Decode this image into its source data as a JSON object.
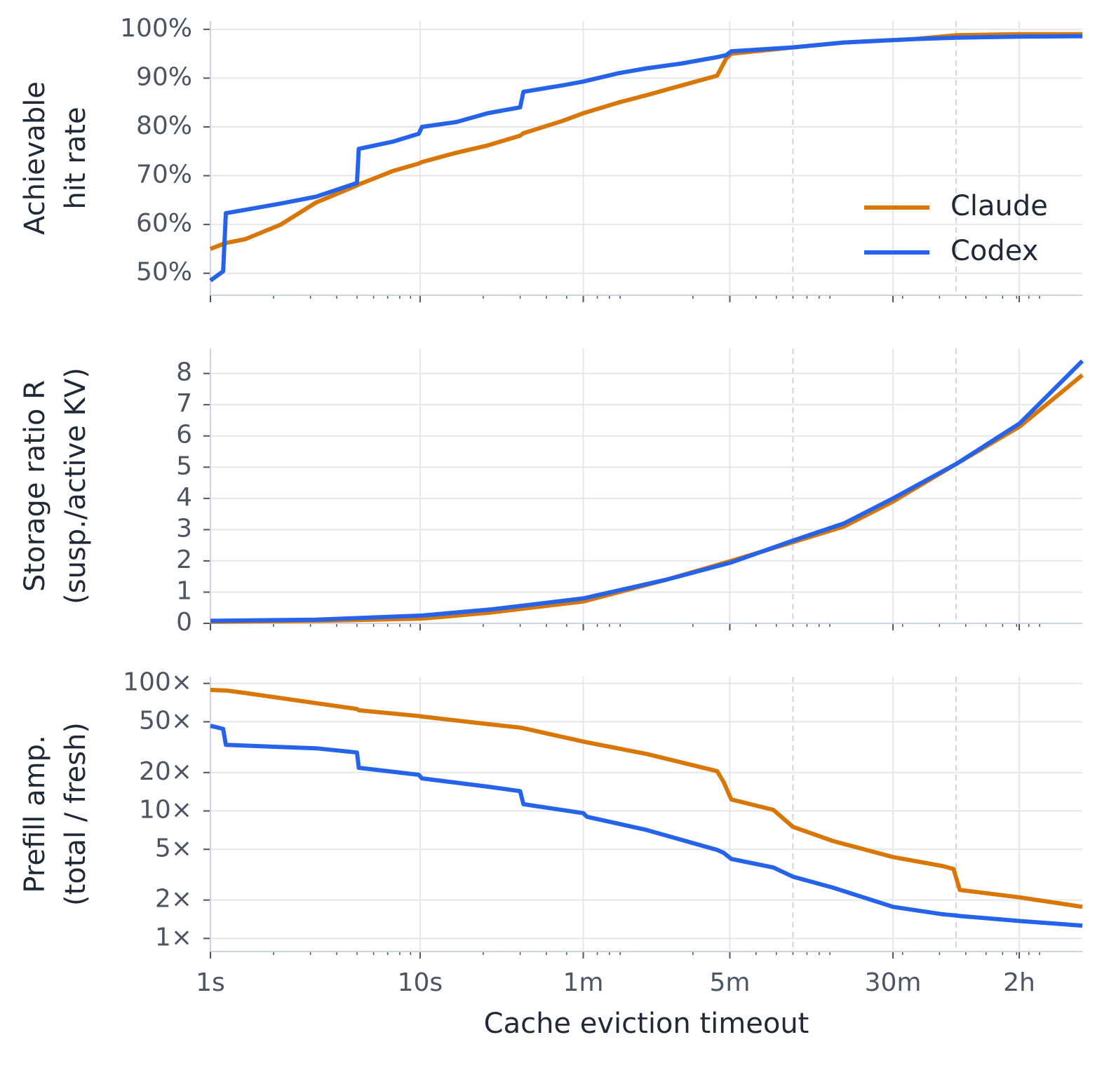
{
  "chart_data": [
    {
      "type": "line",
      "ylabel": [
        "Achievable",
        "hit rate"
      ],
      "xlog": true,
      "ylog": false,
      "grid": true,
      "legend": "lower right",
      "xlim": [
        1,
        14400
      ],
      "ylim": [
        45.5,
        101.7
      ],
      "yticks": [
        {
          "value": 50,
          "label": "50%"
        },
        {
          "value": 60,
          "label": "60%"
        },
        {
          "value": 70,
          "label": "70%"
        },
        {
          "value": 80,
          "label": "80%"
        },
        {
          "value": 90,
          "label": "90%"
        },
        {
          "value": 100,
          "label": "100%"
        }
      ],
      "vlines": [
        600,
        3600
      ],
      "x": [
        1,
        1.15,
        1.185,
        1.47,
        2.17,
        3.19,
        5.0,
        5.1,
        7.46,
        9.85,
        10.2,
        14.9,
        21,
        30,
        31.1,
        47.6,
        60,
        88.3,
        120,
        177,
        261,
        288,
        305,
        600,
        1050,
        2270,
        3600,
        7230,
        14400
      ],
      "series": [
        {
          "name": "Claude",
          "color": "#d97706",
          "values": [
            55,
            56,
            56.2,
            57,
            60,
            64.5,
            68,
            68.2,
            71,
            72.5,
            72.8,
            74.7,
            76.2,
            78.2,
            78.7,
            81.2,
            82.8,
            85,
            86.5,
            88.5,
            90.5,
            94,
            95,
            96.3,
            97.3,
            98,
            98.8,
            99,
            99
          ]
        },
        {
          "name": "Codex",
          "color": "#2563eb",
          "values": [
            48.5,
            50.4,
            62.3,
            63,
            64.3,
            65.7,
            68.5,
            75.5,
            77,
            78.6,
            80,
            81,
            82.8,
            84,
            87.2,
            88.5,
            89.3,
            91,
            92,
            93,
            94.3,
            94.7,
            95.5,
            96.3,
            97.3,
            98,
            98.3,
            98.5,
            98.6
          ]
        }
      ]
    },
    {
      "type": "line",
      "ylabel": [
        "Storage ratio R",
        "(susp./active KV)"
      ],
      "xlog": true,
      "ylog": false,
      "grid": true,
      "xlim": [
        1,
        14400
      ],
      "ylim": [
        0,
        8.8
      ],
      "yticks": [
        0,
        1,
        2,
        3,
        4,
        5,
        6,
        7,
        8
      ],
      "vlines": [
        600,
        3600
      ],
      "x": [
        1,
        3.19,
        10.2,
        22,
        60,
        150,
        305,
        600,
        1050,
        1800,
        3600,
        7230,
        14400
      ],
      "series": [
        {
          "name": "Claude",
          "color": "#d97706",
          "values": [
            0.05,
            0.08,
            0.15,
            0.35,
            0.7,
            1.4,
            2.0,
            2.6,
            3.1,
            3.9,
            5.1,
            6.3,
            7.95
          ]
        },
        {
          "name": "Codex",
          "color": "#2563eb",
          "values": [
            0.08,
            0.12,
            0.25,
            0.45,
            0.8,
            1.4,
            1.95,
            2.65,
            3.2,
            4.0,
            5.1,
            6.4,
            8.4
          ]
        }
      ]
    },
    {
      "type": "line",
      "ylabel": [
        "Prefill amp.",
        "(total / fresh)"
      ],
      "xlabel": "Cache eviction timeout",
      "xlog": true,
      "ylog": true,
      "grid": true,
      "xlim": [
        1,
        14400
      ],
      "ylim": [
        0.79,
        113
      ],
      "xticks": [
        {
          "value": 1,
          "label": "1s"
        },
        {
          "value": 10,
          "label": "10s"
        },
        {
          "value": 60,
          "label": "1m"
        },
        {
          "value": 300,
          "label": "5m"
        },
        {
          "value": 1800,
          "label": "30m"
        },
        {
          "value": 7200,
          "label": "2h"
        }
      ],
      "yticks": [
        {
          "value": 1,
          "label": "1×"
        },
        {
          "value": 2,
          "label": "2×"
        },
        {
          "value": 5,
          "label": "5×"
        },
        {
          "value": 10,
          "label": "10×"
        },
        {
          "value": 20,
          "label": "20×"
        },
        {
          "value": 50,
          "label": "50×"
        },
        {
          "value": 100,
          "label": "100×"
        }
      ],
      "vlines": [
        600,
        3600
      ],
      "x": [
        1,
        1.15,
        1.185,
        1.47,
        3.19,
        5.0,
        5.1,
        9.85,
        10.2,
        21,
        30,
        31.1,
        60,
        62.4,
        120,
        261,
        280,
        305,
        484,
        600,
        933,
        1800,
        3090,
        3500,
        3750,
        7230,
        14400
      ],
      "series": [
        {
          "name": "Claude",
          "color": "#d97706",
          "values": [
            89,
            88,
            88,
            84,
            70,
            63,
            61.5,
            55.5,
            55,
            48,
            45,
            44.5,
            35,
            34.5,
            28,
            20.5,
            16.9,
            12.3,
            10.2,
            7.5,
            5.8,
            4.35,
            3.7,
            3.5,
            2.4,
            2.1,
            1.77
          ]
        },
        {
          "name": "Codex",
          "color": "#2563eb",
          "values": [
            46.5,
            44,
            33,
            32.5,
            31,
            28.7,
            21.8,
            19.2,
            18,
            15.5,
            14.3,
            11.3,
            9.6,
            9,
            7.1,
            4.95,
            4.7,
            4.2,
            3.6,
            3.05,
            2.5,
            1.77,
            1.55,
            1.52,
            1.5,
            1.37,
            1.26
          ]
        }
      ]
    }
  ]
}
